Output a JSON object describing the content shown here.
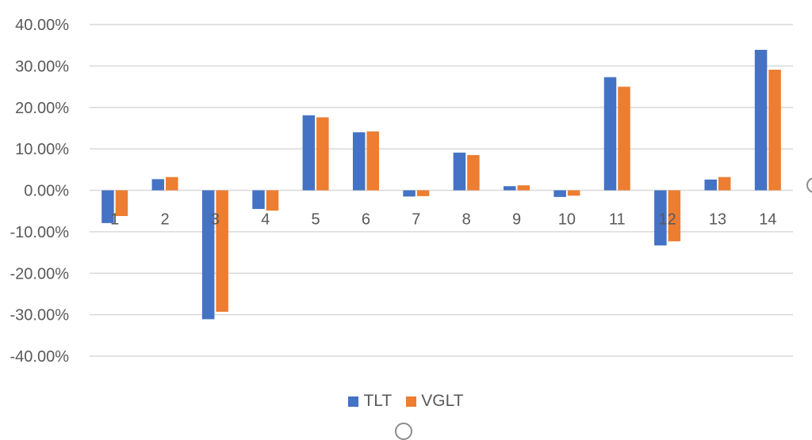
{
  "chart_data": {
    "type": "bar",
    "title": "",
    "xlabel": "",
    "ylabel": "",
    "categories": [
      "1",
      "2",
      "3",
      "4",
      "5",
      "6",
      "7",
      "8",
      "9",
      "10",
      "11",
      "12",
      "13",
      "14"
    ],
    "series": [
      {
        "name": "TLT",
        "color": "#4472C4",
        "values": [
          -7.9,
          2.7,
          -31.1,
          -4.5,
          18.1,
          14.0,
          -1.5,
          9.1,
          1.0,
          -1.6,
          27.3,
          -13.3,
          2.6,
          33.9
        ]
      },
      {
        "name": "VGLT",
        "color": "#ED7D31",
        "values": [
          -6.2,
          3.2,
          -29.3,
          -4.9,
          17.6,
          14.2,
          -1.4,
          8.5,
          1.2,
          -1.3,
          25.0,
          -12.3,
          3.2,
          29.1
        ]
      }
    ],
    "ylim": [
      -40,
      40
    ],
    "ytick_step": 10,
    "ytick_labels": [
      "40.00%",
      "30.00%",
      "20.00%",
      "10.00%",
      "0.00%",
      "-10.00%",
      "-20.00%",
      "-30.00%",
      "-40.00%"
    ],
    "grid": true,
    "legend_position": "bottom"
  }
}
